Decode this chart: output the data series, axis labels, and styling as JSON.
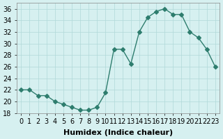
{
  "x": [
    0,
    1,
    2,
    3,
    4,
    5,
    6,
    7,
    8,
    9,
    10,
    11,
    12,
    13,
    14,
    15,
    16,
    17,
    18,
    19,
    20,
    21,
    22,
    23
  ],
  "y": [
    22,
    22,
    21,
    21,
    20,
    19.5,
    19,
    18.5,
    18.5,
    19,
    21.5,
    29,
    29,
    26.5,
    32,
    34.5,
    35.5,
    36,
    35,
    35,
    32,
    31,
    29,
    26
  ],
  "line_color": "#2e7d6e",
  "marker": "D",
  "marker_size": 3,
  "background_color": "#d6f0f0",
  "grid_color": "#b0d8d8",
  "xlabel": "Humidex (Indice chaleur)",
  "ylim": [
    18,
    37
  ],
  "yticks": [
    18,
    20,
    22,
    24,
    26,
    28,
    30,
    32,
    34,
    36
  ],
  "xtick_labels": [
    "0",
    "1",
    "2",
    "3",
    "4",
    "5",
    "6",
    "7",
    "8",
    "9",
    "10",
    "11",
    "12",
    "13",
    "14",
    "15",
    "16",
    "17",
    "18",
    "19",
    "20",
    "21",
    "22",
    "23"
  ],
  "xlabel_fontsize": 8,
  "tick_fontsize": 7
}
